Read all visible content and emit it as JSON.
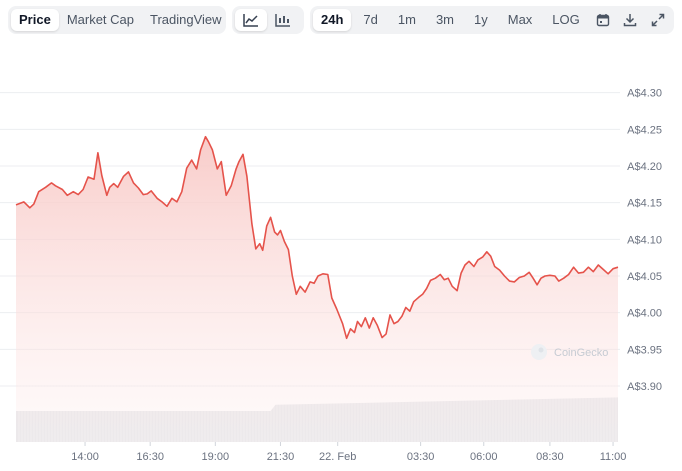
{
  "tabs": {
    "metric": [
      {
        "label": "Price",
        "active": true
      },
      {
        "label": "Market Cap",
        "active": false
      },
      {
        "label": "TradingView",
        "active": false
      }
    ],
    "chart_type_icons": [
      "line-chart-icon",
      "candlestick-chart-icon"
    ],
    "ranges": [
      {
        "label": "24h",
        "active": true
      },
      {
        "label": "7d",
        "active": false
      },
      {
        "label": "1m",
        "active": false
      },
      {
        "label": "3m",
        "active": false
      },
      {
        "label": "1y",
        "active": false
      },
      {
        "label": "Max",
        "active": false
      },
      {
        "label": "LOG",
        "active": false
      }
    ],
    "tool_icons": [
      "calendar-icon",
      "download-icon",
      "expand-icon"
    ]
  },
  "watermark": "CoinGecko",
  "colors": {
    "line": "#e5534b",
    "fill_top": "#f8c9c6",
    "volume": "#e6e8eb",
    "grid": "#eceef1",
    "active_tab_bg": "#ffffff",
    "toolbar_bg": "#f1f2f4"
  },
  "chart_data": {
    "type": "area",
    "title": "",
    "xlabel": "",
    "ylabel": "",
    "grid": true,
    "y_axis_position": "right",
    "ylim": [
      3.87,
      4.32
    ],
    "y_ticks": [
      {
        "value": 4.3,
        "label": "A$4.30"
      },
      {
        "value": 4.25,
        "label": "A$4.25"
      },
      {
        "value": 4.2,
        "label": "A$4.20"
      },
      {
        "value": 4.15,
        "label": "A$4.15"
      },
      {
        "value": 4.1,
        "label": "A$4.10"
      },
      {
        "value": 4.05,
        "label": "A$4.05"
      },
      {
        "value": 4.0,
        "label": "A$4.00"
      },
      {
        "value": 3.95,
        "label": "A$3.95"
      },
      {
        "value": 3.9,
        "label": "A$3.90"
      }
    ],
    "x_ticks": [
      {
        "pos": 0.1147,
        "label": "14:00"
      },
      {
        "pos": 0.2229,
        "label": "16:30"
      },
      {
        "pos": 0.3311,
        "label": "19:00"
      },
      {
        "pos": 0.4393,
        "label": "21:30"
      },
      {
        "pos": 0.5344,
        "label": "22. Feb"
      },
      {
        "pos": 0.6721,
        "label": "03:30"
      },
      {
        "pos": 0.777,
        "label": "06:00"
      },
      {
        "pos": 0.8869,
        "label": "08:30"
      },
      {
        "pos": 0.9918,
        "label": "11:00"
      }
    ],
    "series": [
      {
        "x": [
          0,
          0.0131,
          0.023,
          0.0295,
          0.0377,
          0.0492,
          0.059,
          0.0656,
          0.077,
          0.0852,
          0.0951,
          0.1033,
          0.1115,
          0.1197,
          0.1295,
          0.1361,
          0.1426,
          0.1508,
          0.1557,
          0.1623,
          0.1689,
          0.1787,
          0.1869,
          0.1951,
          0.2033,
          0.2115,
          0.218,
          0.2246,
          0.2344,
          0.2426,
          0.2508,
          0.259,
          0.2672,
          0.2754,
          0.2836,
          0.2918,
          0.3,
          0.3066,
          0.3148,
          0.3197,
          0.3262,
          0.3344,
          0.341,
          0.3492,
          0.3574,
          0.3656,
          0.3705,
          0.377,
          0.3836,
          0.3918,
          0.3984,
          0.4049,
          0.4098,
          0.4164,
          0.423,
          0.4295,
          0.4344,
          0.4393,
          0.4459,
          0.4525,
          0.459,
          0.4656,
          0.4721,
          0.4803,
          0.4885,
          0.4951,
          0.5016,
          0.5098,
          0.518,
          0.5246,
          0.5328,
          0.5426,
          0.5492,
          0.5557,
          0.5623,
          0.5672,
          0.5738,
          0.5803,
          0.5869,
          0.5934,
          0.6,
          0.6082,
          0.6148,
          0.6213,
          0.6279,
          0.6344,
          0.641,
          0.6475,
          0.6541,
          0.6607,
          0.6689,
          0.6754,
          0.682,
          0.6885,
          0.6967,
          0.7049,
          0.7115,
          0.718,
          0.7246,
          0.7328,
          0.7393,
          0.7459,
          0.7525,
          0.7607,
          0.7672,
          0.7754,
          0.782,
          0.7885,
          0.7951,
          0.8033,
          0.8115,
          0.8197,
          0.8279,
          0.8361,
          0.8443,
          0.8525,
          0.859,
          0.8656,
          0.8721,
          0.8787,
          0.8869,
          0.8951,
          0.9016,
          0.9098,
          0.918,
          0.9262,
          0.9344,
          0.9426,
          0.9508,
          0.959,
          0.9672,
          0.9754,
          0.9836,
          0.9918,
          1.0
        ],
        "y": [
          4.147,
          4.151,
          4.143,
          4.148,
          4.165,
          4.171,
          4.177,
          4.173,
          4.168,
          4.16,
          4.165,
          4.161,
          4.168,
          4.185,
          4.182,
          4.218,
          4.187,
          4.16,
          4.171,
          4.176,
          4.171,
          4.186,
          4.192,
          4.177,
          4.17,
          4.161,
          4.162,
          4.166,
          4.156,
          4.151,
          4.145,
          4.156,
          4.151,
          4.165,
          4.197,
          4.208,
          4.196,
          4.222,
          4.24,
          4.233,
          4.222,
          4.196,
          4.206,
          4.16,
          4.173,
          4.196,
          4.206,
          4.216,
          4.186,
          4.121,
          4.087,
          4.094,
          4.085,
          4.118,
          4.13,
          4.11,
          4.106,
          4.112,
          4.097,
          4.086,
          4.05,
          4.025,
          4.036,
          4.028,
          4.042,
          4.04,
          4.05,
          4.053,
          4.052,
          4.02,
          4.005,
          3.985,
          3.965,
          3.978,
          3.973,
          3.988,
          3.981,
          3.993,
          3.979,
          3.993,
          3.983,
          3.966,
          3.971,
          3.997,
          3.985,
          3.988,
          3.995,
          4.007,
          4.002,
          4.015,
          4.021,
          4.025,
          4.033,
          4.044,
          4.047,
          4.052,
          4.045,
          4.047,
          4.036,
          4.03,
          4.054,
          4.065,
          4.07,
          4.063,
          4.072,
          4.076,
          4.083,
          4.077,
          4.063,
          4.058,
          4.05,
          4.043,
          4.042,
          4.048,
          4.05,
          4.055,
          4.047,
          4.038,
          4.047,
          4.05,
          4.051,
          4.05,
          4.043,
          4.047,
          4.052,
          4.062,
          4.054,
          4.055,
          4.062,
          4.056,
          4.065,
          4.059,
          4.053,
          4.06,
          4.062
        ]
      }
    ],
    "volume": {
      "x": [
        0,
        0.423,
        0.4311,
        1.0
      ],
      "level": [
        0.5,
        0.5,
        0.6,
        0.72
      ]
    }
  }
}
